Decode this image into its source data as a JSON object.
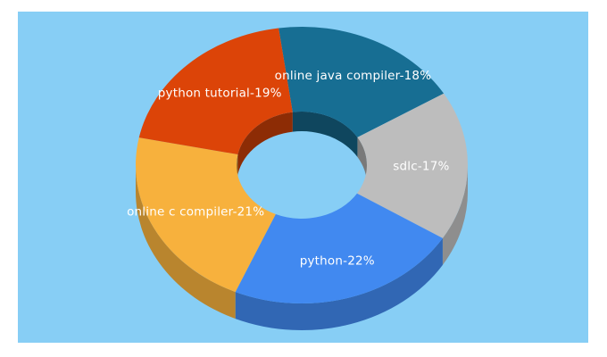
{
  "page": {
    "background_color": "#ffffff"
  },
  "chart": {
    "panel_background_color": "#87CEF5"
  },
  "chart_data": {
    "type": "pie",
    "style": "3d-donut",
    "title": "",
    "legend": "none",
    "unit": "%",
    "label_format": "{label}-{value}%",
    "label_color": "#FFFFFF",
    "start_angle_deg": 98,
    "direction": "clockwise",
    "series": [
      {
        "label": "online java compiler",
        "value": 18,
        "color": "#176E93"
      },
      {
        "label": "sdlc",
        "value": 17,
        "color": "#BDBDBD"
      },
      {
        "label": "python",
        "value": 22,
        "color": "#4189F0"
      },
      {
        "label": "online c compiler",
        "value": 21,
        "color": "#F7B13D"
      },
      {
        "label": "python tutorial",
        "value": 19,
        "color": "#DC4408"
      }
    ]
  }
}
